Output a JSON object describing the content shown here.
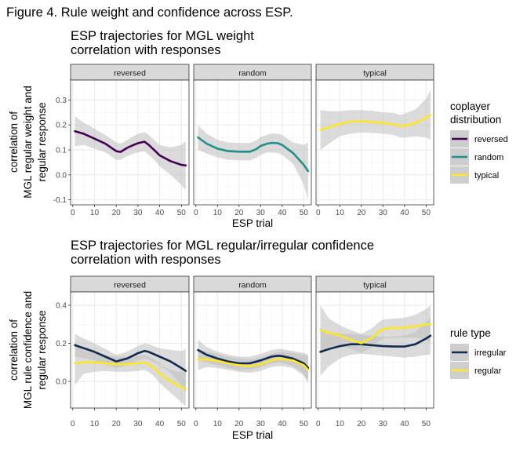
{
  "figure_caption": "Figure 4. Rule weight and confidence across ESP.",
  "colors": {
    "reversed": "#440154",
    "random": "#21908C",
    "typical": "#FDE725",
    "irregular": "#132B4F",
    "regular": "#FDE725",
    "ribbon": "#BEBEBE",
    "strip_bg": "#D9D9D9",
    "grid": "#EBEBEB"
  },
  "chart_data": [
    {
      "type": "line",
      "title": "ESP trajectories for MGL weight correlation with responses",
      "title_lines": [
        "ESP trajectories for MGL weight",
        "correlation with responses"
      ],
      "xlabel": "ESP trial",
      "ylabel_lines": [
        "correlation of",
        "MGL regular weight and",
        "regular response"
      ],
      "xlim": [
        0,
        52
      ],
      "ylim": [
        -0.12,
        0.38
      ],
      "xticks": [
        0,
        10,
        20,
        30,
        40,
        50
      ],
      "yticks": [
        -0.1,
        0.0,
        0.1,
        0.2,
        0.3
      ],
      "ytick_labels": [
        "-0.1",
        "0.0",
        "0.1",
        "0.2",
        "0.3"
      ],
      "grid": true,
      "legend": {
        "title_lines": [
          "coplayer",
          "distribution"
        ],
        "position": "right",
        "entries": [
          "reversed",
          "random",
          "typical"
        ]
      },
      "facets": [
        {
          "label": "reversed",
          "series": [
            {
              "name": "reversed",
              "color_key": "reversed",
              "x": [
                1,
                5,
                10,
                15,
                20,
                22,
                25,
                28,
                30,
                33,
                35,
                38,
                40,
                45,
                50,
                52
              ],
              "y": [
                0.175,
                0.165,
                0.145,
                0.125,
                0.095,
                0.092,
                0.108,
                0.12,
                0.127,
                0.133,
                0.12,
                0.095,
                0.078,
                0.055,
                0.04,
                0.038
              ],
              "lower": [
                0.115,
                0.12,
                0.105,
                0.09,
                0.06,
                0.06,
                0.075,
                0.085,
                0.09,
                0.095,
                0.08,
                0.055,
                0.035,
                0.0,
                -0.04,
                -0.06
              ],
              "upper": [
                0.235,
                0.21,
                0.185,
                0.16,
                0.13,
                0.125,
                0.14,
                0.155,
                0.165,
                0.172,
                0.16,
                0.135,
                0.12,
                0.11,
                0.12,
                0.135
              ]
            }
          ]
        },
        {
          "label": "random",
          "series": [
            {
              "name": "random",
              "color_key": "random",
              "x": [
                1,
                5,
                10,
                15,
                20,
                25,
                28,
                30,
                33,
                35,
                38,
                40,
                45,
                50,
                52
              ],
              "y": [
                0.15,
                0.125,
                0.105,
                0.095,
                0.093,
                0.093,
                0.103,
                0.116,
                0.125,
                0.128,
                0.127,
                0.12,
                0.088,
                0.04,
                0.015
              ],
              "lower": [
                0.1,
                0.085,
                0.07,
                0.06,
                0.058,
                0.058,
                0.068,
                0.08,
                0.09,
                0.09,
                0.088,
                0.08,
                0.045,
                -0.04,
                -0.1
              ],
              "upper": [
                0.2,
                0.165,
                0.14,
                0.13,
                0.128,
                0.128,
                0.138,
                0.152,
                0.16,
                0.166,
                0.166,
                0.16,
                0.13,
                0.12,
                0.13
              ]
            }
          ]
        },
        {
          "label": "typical",
          "series": [
            {
              "name": "typical",
              "color_key": "typical",
              "x": [
                1,
                5,
                10,
                15,
                20,
                25,
                30,
                35,
                38,
                40,
                45,
                50,
                52
              ],
              "y": [
                0.18,
                0.19,
                0.205,
                0.213,
                0.215,
                0.212,
                0.208,
                0.203,
                0.195,
                0.198,
                0.208,
                0.228,
                0.24
              ],
              "lower": [
                0.1,
                0.125,
                0.155,
                0.165,
                0.17,
                0.168,
                0.165,
                0.16,
                0.15,
                0.15,
                0.155,
                0.15,
                0.14
              ],
              "upper": [
                0.26,
                0.255,
                0.255,
                0.26,
                0.26,
                0.257,
                0.25,
                0.248,
                0.24,
                0.245,
                0.262,
                0.305,
                0.34
              ]
            }
          ]
        }
      ]
    },
    {
      "type": "line",
      "title": "ESP trajectories for MGL regular/irregular confidence correlation with responses",
      "title_lines": [
        "ESP trajectories for MGL regular/irregular confidence",
        "correlation with responses"
      ],
      "xlabel": "ESP trial",
      "ylabel_lines": [
        "correlation of",
        "MGL rule confidence and",
        "regular response"
      ],
      "xlim": [
        0,
        52
      ],
      "ylim": [
        -0.14,
        0.47
      ],
      "xticks": [
        0,
        10,
        20,
        30,
        40,
        50
      ],
      "yticks": [
        0.0,
        0.2,
        0.4
      ],
      "ytick_labels": [
        "0.0",
        "0.2",
        "0.4"
      ],
      "grid": true,
      "legend": {
        "title_lines": [
          "rule type"
        ],
        "position": "right",
        "entries": [
          "irregular",
          "regular"
        ]
      },
      "facets": [
        {
          "label": "reversed",
          "series": [
            {
              "name": "irregular",
              "color_key": "irregular",
              "x": [
                1,
                5,
                10,
                15,
                20,
                25,
                30,
                33,
                35,
                40,
                45,
                50,
                52
              ],
              "y": [
                0.19,
                0.175,
                0.155,
                0.13,
                0.105,
                0.12,
                0.148,
                0.16,
                0.155,
                0.13,
                0.105,
                0.07,
                0.055
              ],
              "lower": [
                0.13,
                0.125,
                0.11,
                0.09,
                0.07,
                0.085,
                0.11,
                0.12,
                0.115,
                0.085,
                0.045,
                -0.02,
                -0.06
              ],
              "upper": [
                0.25,
                0.225,
                0.2,
                0.17,
                0.14,
                0.155,
                0.186,
                0.2,
                0.195,
                0.175,
                0.165,
                0.16,
                0.17
              ]
            },
            {
              "name": "regular",
              "color_key": "regular",
              "x": [
                1,
                5,
                10,
                15,
                20,
                25,
                30,
                33,
                35,
                38,
                40,
                45,
                50,
                52
              ],
              "y": [
                0.095,
                0.1,
                0.1,
                0.095,
                0.09,
                0.09,
                0.095,
                0.1,
                0.09,
                0.065,
                0.04,
                0.0,
                -0.03,
                -0.04
              ],
              "lower": [
                -0.02,
                0.04,
                0.05,
                0.055,
                0.05,
                0.05,
                0.055,
                0.06,
                0.05,
                0.02,
                -0.01,
                -0.06,
                -0.11,
                -0.13
              ],
              "upper": [
                0.21,
                0.16,
                0.15,
                0.135,
                0.13,
                0.13,
                0.135,
                0.14,
                0.13,
                0.11,
                0.09,
                0.06,
                0.05,
                0.05
              ]
            }
          ]
        },
        {
          "label": "random",
          "series": [
            {
              "name": "irregular",
              "color_key": "irregular",
              "x": [
                1,
                5,
                10,
                15,
                20,
                25,
                30,
                35,
                38,
                40,
                45,
                50,
                52
              ],
              "y": [
                0.165,
                0.14,
                0.12,
                0.105,
                0.095,
                0.095,
                0.11,
                0.13,
                0.135,
                0.133,
                0.12,
                0.095,
                0.07
              ],
              "lower": [
                0.11,
                0.1,
                0.085,
                0.07,
                0.06,
                0.06,
                0.075,
                0.095,
                0.1,
                0.095,
                0.08,
                0.04,
                0.0
              ],
              "upper": [
                0.22,
                0.18,
                0.155,
                0.14,
                0.13,
                0.13,
                0.145,
                0.165,
                0.17,
                0.17,
                0.16,
                0.15,
                0.14
              ]
            },
            {
              "name": "regular",
              "color_key": "regular",
              "x": [
                1,
                5,
                10,
                15,
                20,
                25,
                30,
                35,
                38,
                40,
                45,
                50,
                52
              ],
              "y": [
                0.115,
                0.115,
                0.108,
                0.095,
                0.085,
                0.08,
                0.09,
                0.11,
                0.118,
                0.117,
                0.11,
                0.085,
                0.06
              ],
              "lower": [
                0.06,
                0.075,
                0.07,
                0.06,
                0.05,
                0.045,
                0.055,
                0.075,
                0.08,
                0.08,
                0.07,
                0.03,
                -0.01
              ],
              "upper": [
                0.17,
                0.155,
                0.145,
                0.13,
                0.12,
                0.115,
                0.125,
                0.145,
                0.155,
                0.155,
                0.15,
                0.14,
                0.13
              ]
            }
          ]
        },
        {
          "label": "typical",
          "series": [
            {
              "name": "irregular",
              "color_key": "irregular",
              "x": [
                1,
                5,
                10,
                15,
                20,
                25,
                30,
                35,
                40,
                45,
                50,
                52
              ],
              "y": [
                0.155,
                0.17,
                0.185,
                0.195,
                0.195,
                0.19,
                0.185,
                0.183,
                0.183,
                0.195,
                0.225,
                0.24
              ],
              "lower": [
                0.03,
                0.08,
                0.12,
                0.14,
                0.145,
                0.14,
                0.135,
                0.13,
                0.125,
                0.13,
                0.14,
                0.14
              ],
              "upper": [
                0.28,
                0.26,
                0.25,
                0.25,
                0.245,
                0.24,
                0.235,
                0.236,
                0.24,
                0.26,
                0.31,
                0.34
              ]
            },
            {
              "name": "regular",
              "color_key": "regular",
              "x": [
                1,
                5,
                10,
                15,
                20,
                25,
                28,
                30,
                35,
                40,
                45,
                50,
                52
              ],
              "y": [
                0.27,
                0.255,
                0.24,
                0.22,
                0.2,
                0.23,
                0.26,
                0.275,
                0.28,
                0.282,
                0.29,
                0.3,
                0.3
              ],
              "lower": [
                0.14,
                0.18,
                0.185,
                0.17,
                0.15,
                0.18,
                0.21,
                0.225,
                0.23,
                0.23,
                0.23,
                0.22,
                0.2
              ],
              "upper": [
                0.4,
                0.33,
                0.295,
                0.27,
                0.25,
                0.28,
                0.31,
                0.325,
                0.33,
                0.335,
                0.35,
                0.38,
                0.4
              ]
            }
          ]
        }
      ]
    }
  ]
}
